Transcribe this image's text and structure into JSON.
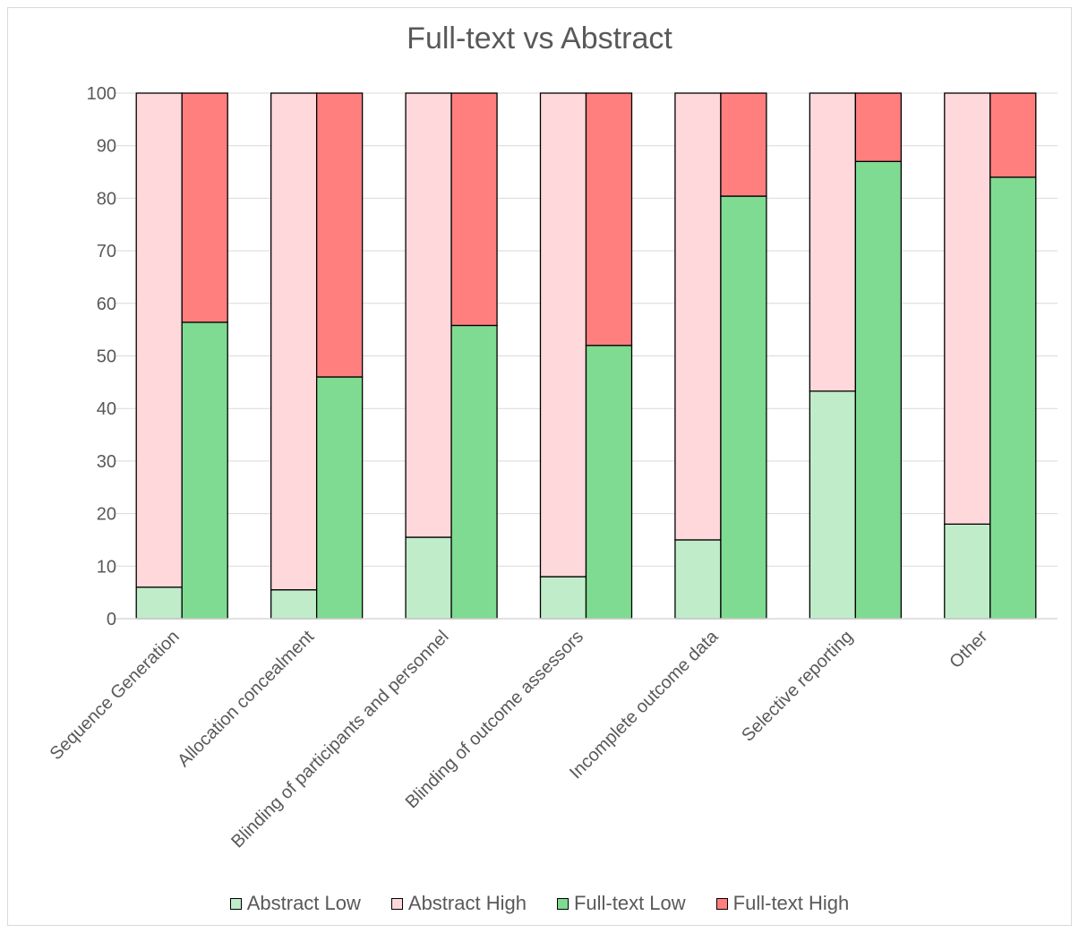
{
  "chart_data": {
    "type": "bar",
    "stacked": true,
    "title": "Full-text vs Abstract",
    "xlabel": "",
    "ylabel": "",
    "ylim": [
      0,
      100
    ],
    "yticks": [
      0,
      10,
      20,
      30,
      40,
      50,
      60,
      70,
      80,
      90,
      100
    ],
    "grid": true,
    "legend_position": "bottom",
    "categories": [
      "Sequence Generation",
      "Allocation concealment",
      "Blinding of participants and personnel",
      "Blinding of outcome assessors",
      "Incomplete outcome data",
      "Selective reporting",
      "Other"
    ],
    "series": [
      {
        "name": "Abstract Low",
        "stack": "Abstract",
        "color": "#c0ecca",
        "values": [
          6,
          5.5,
          15.5,
          8,
          15,
          43.3,
          18
        ]
      },
      {
        "name": "Abstract High",
        "stack": "Abstract",
        "color": "#ffd8db",
        "values": [
          94,
          94.5,
          84.5,
          92,
          85,
          56.7,
          82
        ]
      },
      {
        "name": "Full-text Low",
        "stack": "Full-text",
        "color": "#7fdb91",
        "values": [
          56.4,
          46,
          55.8,
          52,
          80.4,
          87,
          84
        ]
      },
      {
        "name": "Full-text High",
        "stack": "Full-text",
        "color": "#ff7f7f",
        "values": [
          43.6,
          54,
          44.2,
          48,
          19.6,
          13,
          16
        ]
      }
    ]
  }
}
